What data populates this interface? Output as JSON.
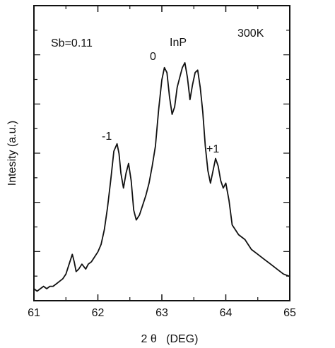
{
  "chart_data": {
    "type": "line",
    "title": "",
    "xlabel": "2 θ   (DEG)",
    "ylabel": "Intesity  (a.u.)",
    "xlim": [
      61,
      65
    ],
    "ylim": [
      0,
      1
    ],
    "xticks": [
      "61",
      "62",
      "63",
      "64",
      "65"
    ],
    "ytick_labels": "none",
    "grid": false,
    "legend": "none",
    "series": [
      {
        "x": [
          61.0,
          61.05,
          61.1,
          61.15,
          61.2,
          61.25,
          61.3,
          61.35,
          61.4,
          61.45,
          61.5,
          61.55,
          61.6,
          61.63,
          61.66,
          61.7,
          61.75,
          61.78,
          61.81,
          61.85,
          61.9,
          61.95,
          62.0,
          62.05,
          62.1,
          62.15,
          62.2,
          62.25,
          62.3,
          62.33,
          62.36,
          62.4,
          62.44,
          62.48,
          62.52,
          62.56,
          62.6,
          62.65,
          62.7,
          62.75,
          62.8,
          62.85,
          62.9,
          62.95,
          63.0,
          63.04,
          63.08,
          63.12,
          63.16,
          63.2,
          63.24,
          63.28,
          63.32,
          63.36,
          63.4,
          63.44,
          63.48,
          63.52,
          63.56,
          63.6,
          63.64,
          63.68,
          63.72,
          63.76,
          63.8,
          63.84,
          63.88,
          63.92,
          63.96,
          64.0,
          64.05,
          64.1,
          64.2,
          64.3,
          64.4,
          64.5,
          64.6,
          64.7,
          64.8,
          64.9,
          65.0
        ],
        "y": [
          0.02,
          0.01,
          0.02,
          0.03,
          0.02,
          0.03,
          0.03,
          0.04,
          0.05,
          0.06,
          0.08,
          0.12,
          0.16,
          0.13,
          0.09,
          0.1,
          0.12,
          0.11,
          0.1,
          0.12,
          0.13,
          0.15,
          0.17,
          0.2,
          0.26,
          0.35,
          0.46,
          0.58,
          0.61,
          0.57,
          0.49,
          0.43,
          0.49,
          0.53,
          0.46,
          0.34,
          0.3,
          0.32,
          0.36,
          0.4,
          0.45,
          0.52,
          0.6,
          0.75,
          0.87,
          0.92,
          0.9,
          0.8,
          0.73,
          0.76,
          0.84,
          0.88,
          0.92,
          0.94,
          0.88,
          0.79,
          0.85,
          0.9,
          0.91,
          0.84,
          0.74,
          0.6,
          0.5,
          0.45,
          0.5,
          0.55,
          0.52,
          0.46,
          0.43,
          0.45,
          0.38,
          0.28,
          0.24,
          0.22,
          0.18,
          0.16,
          0.14,
          0.12,
          0.1,
          0.08,
          0.07
        ]
      }
    ],
    "annotations": [
      {
        "text": "Sb=0.11"
      },
      {
        "text": "300K"
      },
      {
        "text": "0"
      },
      {
        "text": "InP"
      },
      {
        "text": "-1"
      },
      {
        "text": "+1"
      }
    ]
  }
}
